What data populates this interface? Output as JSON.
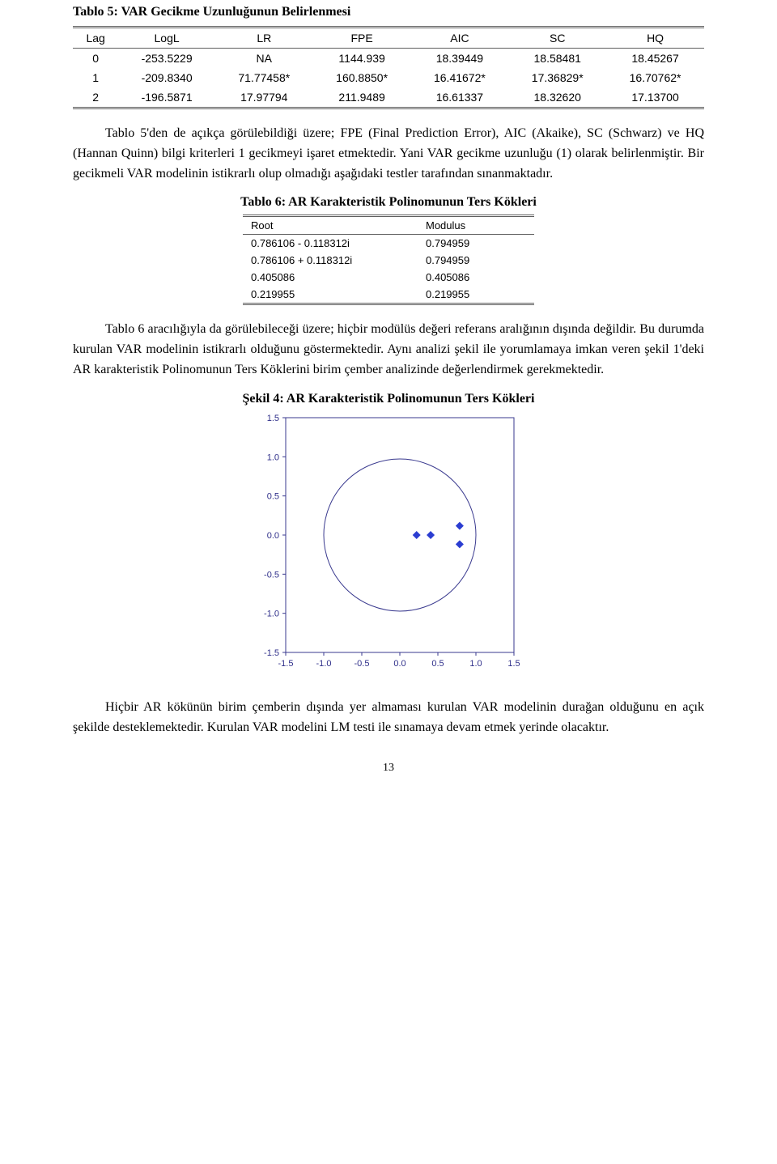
{
  "table5": {
    "caption": "Tablo 5: VAR Gecikme Uzunluğunun Belirlenmesi",
    "columns": [
      "Lag",
      "LogL",
      "LR",
      "FPE",
      "AIC",
      "SC",
      "HQ"
    ],
    "rows": [
      [
        "0",
        "-253.5229",
        "NA",
        "1144.939",
        "18.39449",
        "18.58481",
        "18.45267"
      ],
      [
        "1",
        "-209.8340",
        "71.77458*",
        "160.8850*",
        "16.41672*",
        "17.36829*",
        "16.70762*"
      ],
      [
        "2",
        "-196.5871",
        "17.97794",
        "211.9489",
        "16.61337",
        "18.32620",
        "17.13700"
      ]
    ],
    "font_family": "Arial",
    "header_fontsize": 14,
    "cell_fontsize": 14,
    "border_color": "#5e5e5e"
  },
  "para1": "Tablo 5'den de açıkça görülebildiği üzere; FPE (Final Prediction Error), AIC (Akaike), SC (Schwarz) ve HQ (Hannan Quinn) bilgi kriterleri 1 gecikmeyi işaret etmektedir. Yani VAR gecikme uzunluğu (1) olarak belirlenmiştir. Bir gecikmeli VAR modelinin istikrarlı olup olmadığı aşağıdaki testler tarafından sınanmaktadır.",
  "table6": {
    "caption": "Tablo 6: AR Karakteristik Polinomunun Ters Kökleri",
    "columns": [
      "Root",
      "Modulus"
    ],
    "rows": [
      [
        "0.786106 - 0.118312i",
        "0.794959"
      ],
      [
        "0.786106 + 0.118312i",
        "0.794959"
      ],
      [
        "0.405086",
        "0.405086"
      ],
      [
        "0.219955",
        "0.219955"
      ]
    ],
    "font_family": "Arial",
    "header_fontsize": 13,
    "cell_fontsize": 13,
    "border_color": "#5e5e5e"
  },
  "para2": "Tablo 6 aracılığıyla da görülebileceği üzere; hiçbir modülüs değeri referans aralığının dışında değildir. Bu durumda kurulan VAR modelinin istikrarlı olduğunu göstermektedir. Aynı analizi şekil ile yorumlamaya imkan veren şekil 1'deki AR karakteristik Polinomunun Ters Köklerini birim çember analizinde değerlendirmek gerekmektedir.",
  "figure4": {
    "caption": "Şekil 4: AR Karakteristik Polinomunun Ters Kökleri",
    "type": "scatter",
    "xlim": [
      -1.5,
      1.5
    ],
    "ylim": [
      -1.5,
      1.5
    ],
    "ticks": [
      "-1.5",
      "-1.0",
      "-0.5",
      "0.0",
      "0.5",
      "1.0",
      "1.5"
    ],
    "tick_values": [
      -1.5,
      -1.0,
      -0.5,
      0.0,
      0.5,
      1.0,
      1.5
    ],
    "tick_fontsize": 11,
    "tick_color": "#2f2f8a",
    "axis_border_color": "#3a3a8f",
    "axis_border_width": 1,
    "circle_stroke": "#3a3a8f",
    "circle_stroke_width": 1,
    "background_color": "#ffffff",
    "marker_color": "#2b3dd1",
    "marker_size": 5,
    "points": [
      [
        0.786106,
        0.118312
      ],
      [
        0.786106,
        -0.118312
      ],
      [
        0.405086,
        0.0
      ],
      [
        0.219955,
        0.0
      ]
    ]
  },
  "para3": "Hiçbir AR kökünün birim çemberin dışında yer almaması kurulan VAR modelinin durağan olduğunu en açık şekilde desteklemektedir. Kurulan VAR modelini LM testi ile sınamaya devam etmek yerinde olacaktır.",
  "page_number": "13",
  "body_font_family": "Times New Roman",
  "body_fontsize": 16,
  "text_color": "#000000",
  "background_color": "#ffffff"
}
